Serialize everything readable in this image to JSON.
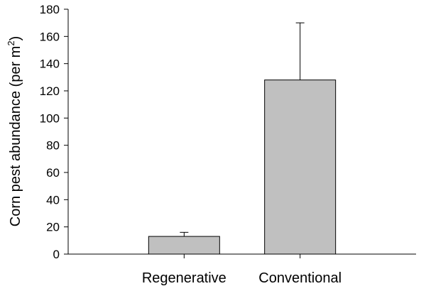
{
  "chart_data": {
    "type": "bar",
    "categories": [
      "Regenerative",
      "Conventional"
    ],
    "values": [
      13,
      128
    ],
    "error_upper": [
      16,
      170
    ],
    "title": "",
    "xlabel": "",
    "ylabel": {
      "text": "Corn pest abundance (per m",
      "superscript": "2",
      "suffix": ")"
    },
    "ylim": [
      0,
      180
    ],
    "yticks": [
      "0",
      "20",
      "40",
      "60",
      "80",
      "100",
      "120",
      "140",
      "160",
      "180"
    ],
    "grid": false,
    "legend": "none",
    "bar_color": "#c0c0c0",
    "line_color": "#000000"
  }
}
